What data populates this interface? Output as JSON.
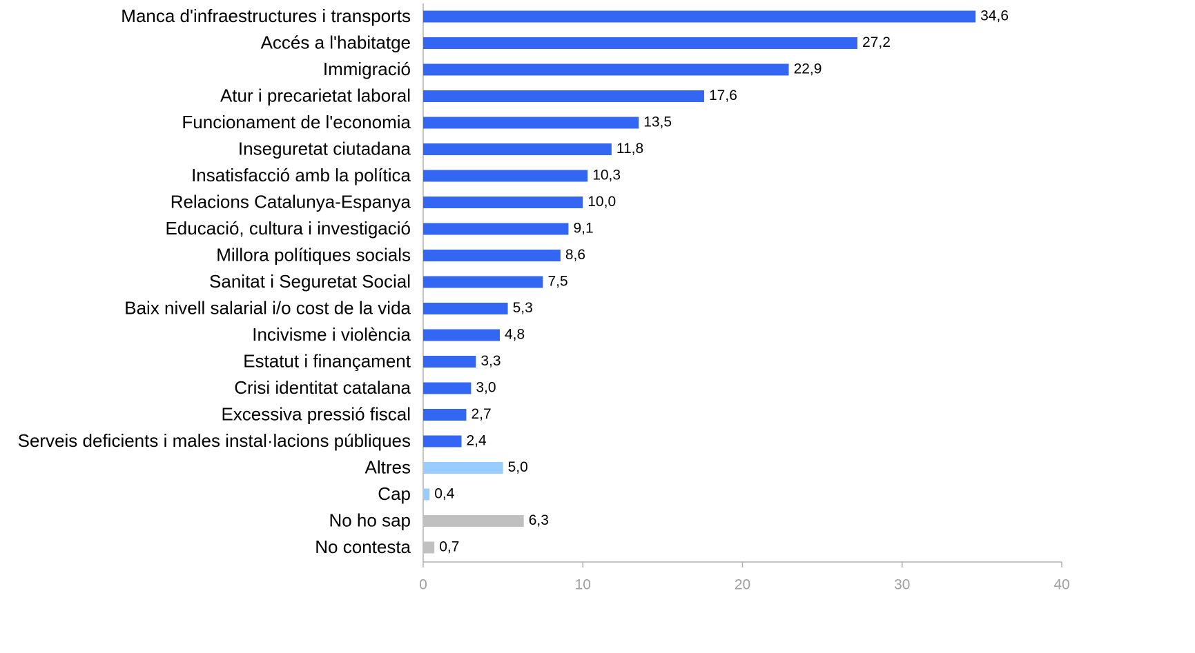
{
  "chart_data": {
    "type": "bar",
    "orientation": "horizontal",
    "categories": [
      "Manca d'infraestructures i transports",
      "Accés a l'habitatge",
      "Immigració",
      "Atur i precarietat laboral",
      "Funcionament de l'economia",
      "Inseguretat ciutadana",
      "Insatisfacció amb la política",
      "Relacions Catalunya-Espanya",
      "Educació, cultura i investigació",
      "Millora polítiques socials",
      "Sanitat i Seguretat Social",
      "Baix nivell salarial i/o cost de la vida",
      "Incivisme i violència",
      "Estatut i finançament",
      "Crisi identitat catalana",
      "Excessiva pressió fiscal",
      "Serveis deficients i males instal·lacions públiques",
      "Altres",
      "Cap",
      "No ho sap",
      "No contesta"
    ],
    "values": [
      34.6,
      27.2,
      22.9,
      17.6,
      13.5,
      11.8,
      10.3,
      10.0,
      9.1,
      8.6,
      7.5,
      5.3,
      4.8,
      3.3,
      3.0,
      2.7,
      2.4,
      5.0,
      0.4,
      6.3,
      0.7
    ],
    "value_labels": [
      "34,6",
      "27,2",
      "22,9",
      "17,6",
      "13,5",
      "11,8",
      "10,3",
      "10,0",
      "9,1",
      "8,6",
      "7,5",
      "5,3",
      "4,8",
      "3,3",
      "3,0",
      "2,7",
      "2,4",
      "5,0",
      "0,4",
      "6,3",
      "0,7"
    ],
    "colors": [
      "#3366f2",
      "#3366f2",
      "#3366f2",
      "#3366f2",
      "#3366f2",
      "#3366f2",
      "#3366f2",
      "#3366f2",
      "#3366f2",
      "#3366f2",
      "#3366f2",
      "#3366f2",
      "#3366f2",
      "#3366f2",
      "#3366f2",
      "#3366f2",
      "#3366f2",
      "#99ccff",
      "#99ccff",
      "#c0c0c0",
      "#c0c0c0"
    ],
    "xlim": [
      0,
      40
    ],
    "xticks": [
      0,
      10,
      20,
      30,
      40
    ]
  }
}
